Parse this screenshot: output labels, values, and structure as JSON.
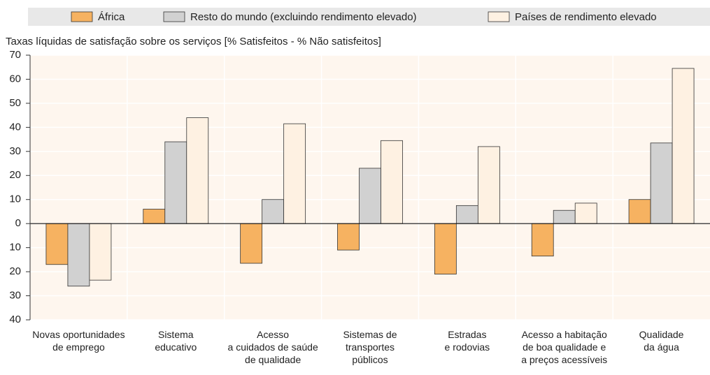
{
  "chart_data": {
    "type": "bar",
    "subtitle": "Taxas líquidas de satisfação  sobre os serviços  [% Satisfeitos - % Não satisfeitos]",
    "categories": [
      "Novas oportunidades\nde emprego",
      "Sistema\neducativo",
      "Acesso\na cuidados de saúde\nde qualidade",
      "Sistemas de\ntransportes\npúblicos",
      "Estradas\ne rodovias",
      "Acesso a habitação\nde boa qualidade e\na preços acessíveis",
      "Qualidade\nda água"
    ],
    "series": [
      {
        "name": "África",
        "color": "#f6b261",
        "values": [
          -17,
          6,
          -16.5,
          -11,
          -21,
          -13.5,
          10
        ]
      },
      {
        "name": "Resto do mundo (excluindo rendimento elevado)",
        "color": "#d1d1d1",
        "values": [
          -26,
          34,
          10,
          23,
          7.5,
          5.5,
          33.5
        ]
      },
      {
        "name": "Países de rendimento elevado",
        "color": "#fef1e2",
        "values": [
          -23.5,
          44,
          41.5,
          34.5,
          32,
          8.5,
          64.5
        ]
      }
    ],
    "ylim": [
      -40,
      70
    ],
    "yticks": [
      {
        "value": -40,
        "label": "40"
      },
      {
        "value": -30,
        "label": "30"
      },
      {
        "value": -20,
        "label": "20"
      },
      {
        "value": -10,
        "label": "10"
      },
      0,
      10,
      20,
      30,
      40,
      50,
      60,
      70
    ],
    "grid": true,
    "legend": "top"
  }
}
